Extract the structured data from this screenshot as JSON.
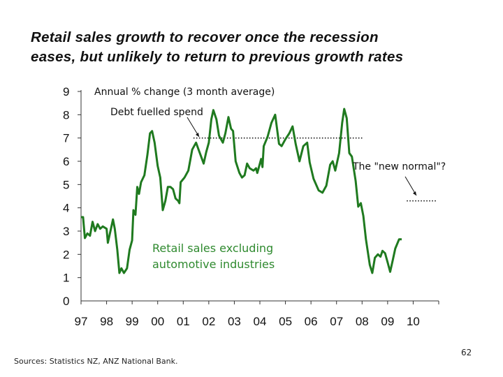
{
  "slide": {
    "title_line1": "Retail sales growth to recover once the recession",
    "title_line2": "eases, but unlikely to return to previous growth rates",
    "sources": "Sources:  Statistics NZ, ANZ National Bank.",
    "page_number": "62"
  },
  "chart_data": {
    "type": "line",
    "title": "Annual % change (3 month average)",
    "xlabel": "",
    "ylabel": "",
    "ylim": [
      0,
      9
    ],
    "xlim": [
      1997,
      2011
    ],
    "grid": false,
    "y_ticks": [
      "0",
      "1",
      "2",
      "3",
      "4",
      "5",
      "6",
      "7",
      "8",
      "9"
    ],
    "x_ticks": [
      "97",
      "98",
      "99",
      "00",
      "01",
      "02",
      "03",
      "04",
      "05",
      "06",
      "07",
      "08",
      "09",
      "10"
    ],
    "series": [
      {
        "name": "Retail sales excluding automotive industries",
        "name_line1": "Retail sales excluding",
        "name_line2": "automotive industries",
        "color": "#1f7a1f",
        "points": [
          [
            1997.0,
            3.6
          ],
          [
            1997.08,
            3.6
          ],
          [
            1997.15,
            2.7
          ],
          [
            1997.25,
            2.9
          ],
          [
            1997.35,
            2.8
          ],
          [
            1997.45,
            3.4
          ],
          [
            1997.55,
            3.0
          ],
          [
            1997.65,
            3.3
          ],
          [
            1997.75,
            3.1
          ],
          [
            1997.85,
            3.2
          ],
          [
            1998.0,
            3.1
          ],
          [
            1998.05,
            2.5
          ],
          [
            1998.15,
            3.0
          ],
          [
            1998.25,
            3.5
          ],
          [
            1998.32,
            3.1
          ],
          [
            1998.42,
            2.2
          ],
          [
            1998.5,
            1.2
          ],
          [
            1998.58,
            1.4
          ],
          [
            1998.68,
            1.2
          ],
          [
            1998.8,
            1.4
          ],
          [
            1998.9,
            2.2
          ],
          [
            1999.0,
            2.6
          ],
          [
            1999.05,
            3.9
          ],
          [
            1999.13,
            3.7
          ],
          [
            1999.2,
            4.9
          ],
          [
            1999.27,
            4.6
          ],
          [
            1999.35,
            5.1
          ],
          [
            1999.48,
            5.4
          ],
          [
            1999.6,
            6.3
          ],
          [
            1999.7,
            7.2
          ],
          [
            1999.78,
            7.3
          ],
          [
            1999.88,
            6.8
          ],
          [
            2000.0,
            5.8
          ],
          [
            2000.1,
            5.3
          ],
          [
            2000.2,
            3.9
          ],
          [
            2000.3,
            4.3
          ],
          [
            2000.4,
            4.9
          ],
          [
            2000.5,
            4.9
          ],
          [
            2000.6,
            4.8
          ],
          [
            2000.7,
            4.4
          ],
          [
            2000.8,
            4.3
          ],
          [
            2000.85,
            4.2
          ],
          [
            2000.9,
            5.1
          ],
          [
            2001.05,
            5.3
          ],
          [
            2001.2,
            5.6
          ],
          [
            2001.35,
            6.5
          ],
          [
            2001.5,
            6.8
          ],
          [
            2001.6,
            6.5
          ],
          [
            2001.7,
            6.2
          ],
          [
            2001.8,
            5.9
          ],
          [
            2001.9,
            6.4
          ],
          [
            2002.0,
            6.8
          ],
          [
            2002.1,
            7.8
          ],
          [
            2002.18,
            8.2
          ],
          [
            2002.3,
            7.8
          ],
          [
            2002.4,
            7.1
          ],
          [
            2002.55,
            6.8
          ],
          [
            2002.65,
            7.2
          ],
          [
            2002.77,
            7.9
          ],
          [
            2002.87,
            7.4
          ],
          [
            2002.95,
            7.3
          ],
          [
            2003.05,
            6.0
          ],
          [
            2003.2,
            5.5
          ],
          [
            2003.3,
            5.3
          ],
          [
            2003.4,
            5.4
          ],
          [
            2003.5,
            5.9
          ],
          [
            2003.6,
            5.7
          ],
          [
            2003.75,
            5.6
          ],
          [
            2003.85,
            5.7
          ],
          [
            2003.9,
            5.5
          ],
          [
            2004.0,
            5.9
          ],
          [
            2004.05,
            6.1
          ],
          [
            2004.1,
            5.75
          ],
          [
            2004.15,
            6.65
          ],
          [
            2004.3,
            7.05
          ],
          [
            2004.45,
            7.65
          ],
          [
            2004.6,
            8.0
          ],
          [
            2004.75,
            6.75
          ],
          [
            2004.85,
            6.65
          ],
          [
            2005.0,
            6.95
          ],
          [
            2005.15,
            7.2
          ],
          [
            2005.28,
            7.5
          ],
          [
            2005.4,
            6.75
          ],
          [
            2005.55,
            6.0
          ],
          [
            2005.7,
            6.65
          ],
          [
            2005.85,
            6.8
          ],
          [
            2005.95,
            5.95
          ],
          [
            2006.1,
            5.25
          ],
          [
            2006.3,
            4.75
          ],
          [
            2006.45,
            4.65
          ],
          [
            2006.6,
            4.95
          ],
          [
            2006.75,
            5.85
          ],
          [
            2006.85,
            6.0
          ],
          [
            2006.95,
            5.6
          ],
          [
            2007.1,
            6.35
          ],
          [
            2007.22,
            7.65
          ],
          [
            2007.3,
            8.25
          ],
          [
            2007.4,
            7.85
          ],
          [
            2007.5,
            6.35
          ],
          [
            2007.6,
            6.2
          ],
          [
            2007.75,
            5.15
          ],
          [
            2007.85,
            4.05
          ],
          [
            2007.95,
            4.2
          ],
          [
            2008.05,
            3.65
          ],
          [
            2008.15,
            2.65
          ],
          [
            2008.3,
            1.55
          ],
          [
            2008.4,
            1.2
          ],
          [
            2008.5,
            1.85
          ],
          [
            2008.62,
            2.0
          ],
          [
            2008.72,
            1.9
          ],
          [
            2008.8,
            2.15
          ],
          [
            2008.9,
            2.05
          ],
          [
            2009.0,
            1.65
          ],
          [
            2009.1,
            1.25
          ],
          [
            2009.2,
            1.75
          ],
          [
            2009.3,
            2.25
          ],
          [
            2009.45,
            2.65
          ],
          [
            2009.55,
            2.65
          ]
        ]
      }
    ],
    "reference_lines": [
      {
        "label": "Debt fuelled spend",
        "y": 7.0,
        "x_from": 2001.4,
        "x_to": 2008.05,
        "style": "dotted"
      },
      {
        "label": "The \"new normal\"?",
        "y": 4.3,
        "x_from": 2009.75,
        "x_to": 2010.95,
        "style": "dotted"
      }
    ]
  }
}
